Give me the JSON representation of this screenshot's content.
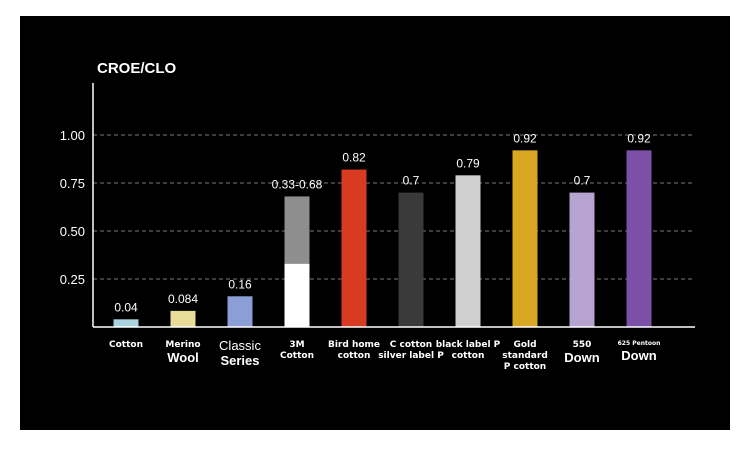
{
  "chart_data": {
    "type": "bar",
    "ylabel": "CROE/CLO",
    "ylim": [
      0,
      1.25
    ],
    "yticks": [
      0.25,
      0.5,
      0.75,
      1.0
    ],
    "ytick_labels": [
      "0.25",
      "0.50",
      "0.75",
      "1.00"
    ],
    "grid": true,
    "bars": [
      {
        "category_lines": [
          {
            "text": "Cotton",
            "style": "small"
          }
        ],
        "value": 0.04,
        "label": "0.04",
        "color": "#a9d3de"
      },
      {
        "category_lines": [
          {
            "text": "Merino",
            "style": "small"
          },
          {
            "text": "Wool",
            "style": "big"
          }
        ],
        "value": 0.084,
        "label": "0.084",
        "color": "#e9dc99"
      },
      {
        "category_lines": [
          {
            "text": "Classic",
            "style": "light"
          },
          {
            "text": "Series",
            "style": "big"
          }
        ],
        "value": 0.16,
        "label": "0.16",
        "color": "#8b9ed6"
      },
      {
        "category_lines": [
          {
            "text": "3M",
            "style": "small"
          },
          {
            "text": "Cotton",
            "style": "small"
          }
        ],
        "value": 0.68,
        "range_low": 0.33,
        "label": "0.33-0.68",
        "color": "#8e8e8e",
        "low_color": "#ffffff"
      },
      {
        "category_lines": [
          {
            "text": "Bird home",
            "style": "small"
          },
          {
            "text": "cotton",
            "style": "small"
          }
        ],
        "value": 0.82,
        "label": "0.82",
        "color": "#d93b22"
      },
      {
        "category_lines": [
          {
            "text": "C cotton",
            "style": "small"
          },
          {
            "text": "silver label P",
            "style": "small"
          }
        ],
        "value": 0.7,
        "label": "0.7",
        "color": "#3a3a3a"
      },
      {
        "category_lines": [
          {
            "text": "black label P",
            "style": "small"
          },
          {
            "text": "cotton",
            "style": "small"
          }
        ],
        "value": 0.79,
        "label": "0.79",
        "color": "#cfcfcf"
      },
      {
        "category_lines": [
          {
            "text": "Gold",
            "style": "small"
          },
          {
            "text": "standard",
            "style": "small"
          },
          {
            "text": "P cotton",
            "style": "small"
          }
        ],
        "value": 0.92,
        "label": "0.92",
        "color": "#d9a823"
      },
      {
        "category_lines": [
          {
            "text": "550",
            "style": "small"
          },
          {
            "text": "Down",
            "style": "big"
          }
        ],
        "value": 0.7,
        "label": "0.7",
        "color": "#b6a3cf"
      },
      {
        "category_lines": [
          {
            "text": "625 Pentoon",
            "style": "tiny"
          },
          {
            "text": "Down",
            "style": "big"
          }
        ],
        "value": 0.92,
        "label": "0.92",
        "color": "#7b50a6"
      }
    ]
  }
}
